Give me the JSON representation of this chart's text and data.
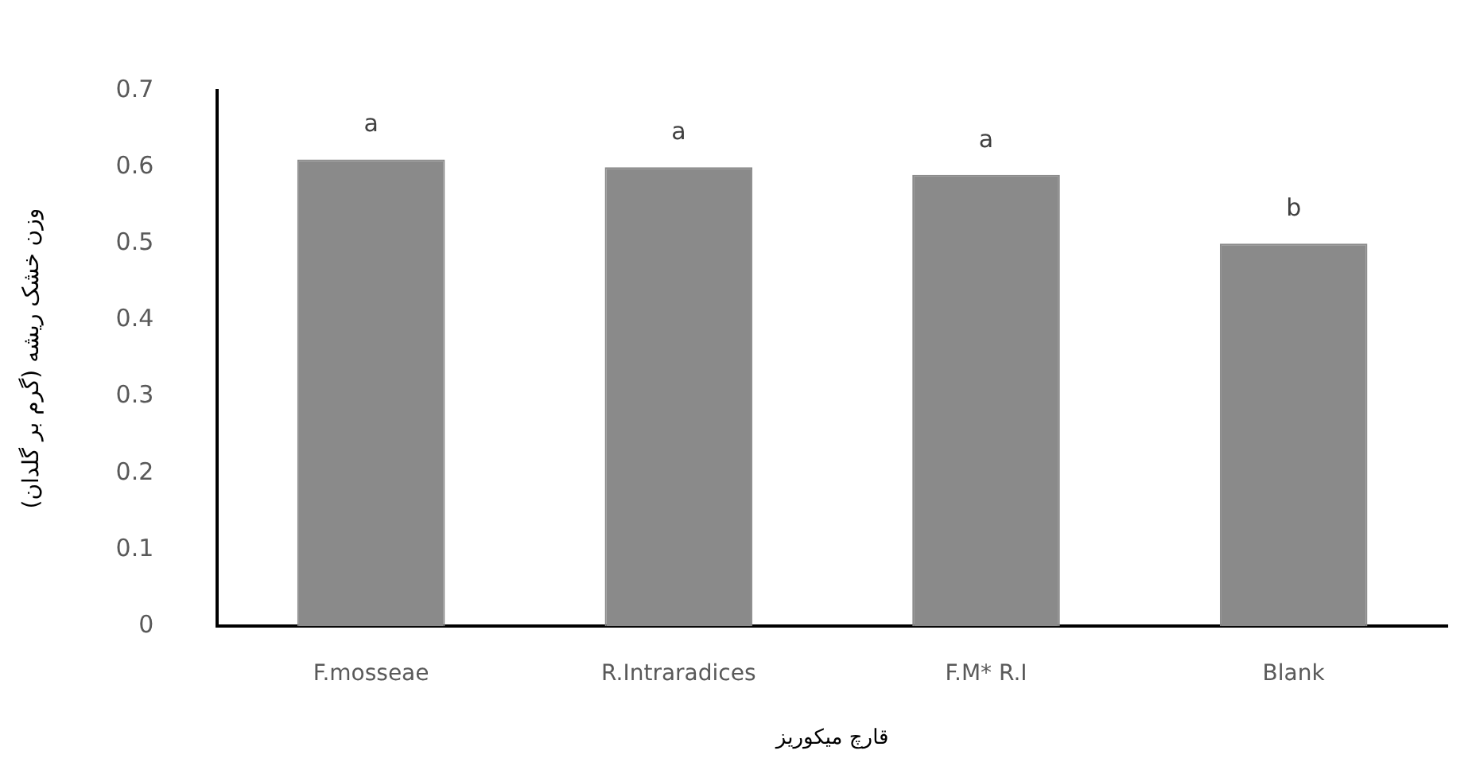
{
  "chart_data": {
    "type": "bar",
    "xlabel": "قارچ میکوریز",
    "ylabel": "وزن خشک ریشه (گرم بر گلدان)",
    "categories": [
      "F.mosseae",
      "R.Intraradices",
      "F.M* R.I",
      "Blank"
    ],
    "values": [
      0.61,
      0.6,
      0.59,
      0.5
    ],
    "color": "#8a8a8a",
    "ylim": [
      0,
      0.7
    ],
    "yticks": [
      0,
      0.1,
      0.2,
      0.3,
      0.4,
      0.5,
      0.6,
      0.7
    ],
    "grid": false,
    "legend": false,
    "annotations": [
      {
        "text": "a",
        "x": "F.mosseae",
        "y": 0.61
      },
      {
        "text": "a",
        "x": "R.Intraradices",
        "y": 0.6
      },
      {
        "text": "a",
        "x": "F.M* R.I",
        "y": 0.59
      },
      {
        "text": "b",
        "x": "Blank",
        "y": 0.5
      }
    ]
  }
}
